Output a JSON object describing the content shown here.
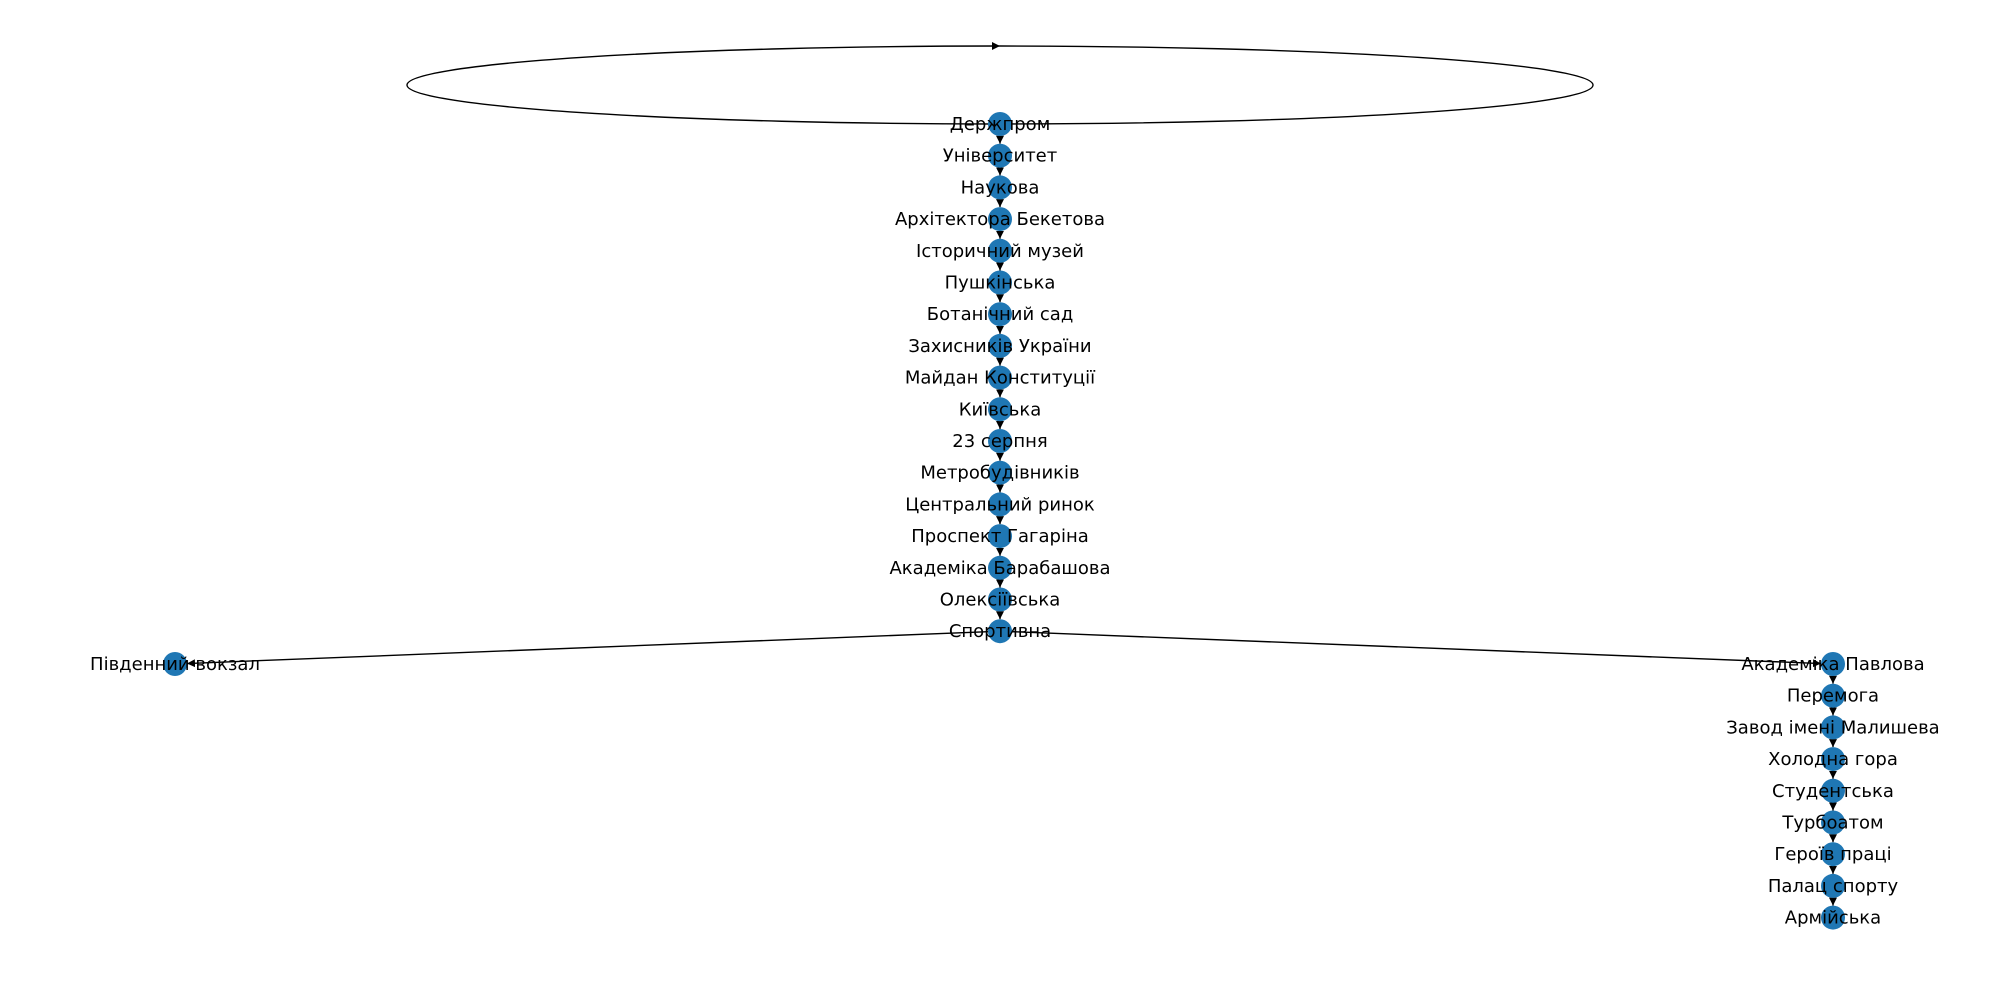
{
  "graph": {
    "node_color": "#1f77b4",
    "edge_color": "#000000",
    "nodes": [
      {
        "id": "derzhprom",
        "label": "Держпром"
      },
      {
        "id": "universytet",
        "label": "Університет"
      },
      {
        "id": "naukova",
        "label": "Наукова"
      },
      {
        "id": "arkhitektora-beketova",
        "label": "Архітектора Бекетова"
      },
      {
        "id": "istorychnyi-muzei",
        "label": "Історичний музей"
      },
      {
        "id": "pushkinska",
        "label": "Пушкінська"
      },
      {
        "id": "botanichnyi-sad",
        "label": "Ботанічний сад"
      },
      {
        "id": "zakhysnykiv-ukrainy",
        "label": "Захисників України"
      },
      {
        "id": "maidan-konstytutsii",
        "label": "Майдан Конституції"
      },
      {
        "id": "kyivska",
        "label": "Київська"
      },
      {
        "id": "23-serpnia",
        "label": "23 серпня"
      },
      {
        "id": "metrobudivnykiv",
        "label": "Метробудівників"
      },
      {
        "id": "tsentralnyi-rynok",
        "label": "Центральний ринок"
      },
      {
        "id": "prospekt-haharina",
        "label": "Проспект Гагаріна"
      },
      {
        "id": "akademika-barabashova",
        "label": "Академіка Барабашова"
      },
      {
        "id": "oleksiivska",
        "label": "Олексіївська"
      },
      {
        "id": "sportyvna",
        "label": "Спортивна"
      },
      {
        "id": "pivdennyi-vokzal",
        "label": "Південний вокзал"
      },
      {
        "id": "akademika-pavlova",
        "label": "Академіка Павлова"
      },
      {
        "id": "peremoha",
        "label": "Перемога"
      },
      {
        "id": "zavod-imeni-malysheva",
        "label": "Завод імені Малишева"
      },
      {
        "id": "kholodna-hora",
        "label": "Холодна гора"
      },
      {
        "id": "studentska",
        "label": "Студентська"
      },
      {
        "id": "turboatom",
        "label": "Турбоатом"
      },
      {
        "id": "heroiv-pratsi",
        "label": "Героїв праці"
      },
      {
        "id": "palats-sportu",
        "label": "Палац спорту"
      },
      {
        "id": "armiiska",
        "label": "Армійська"
      }
    ],
    "edges": [
      {
        "from": "derzhprom",
        "to": "derzhprom"
      },
      {
        "from": "derzhprom",
        "to": "universytet"
      },
      {
        "from": "universytet",
        "to": "naukova"
      },
      {
        "from": "naukova",
        "to": "arkhitektora-beketova"
      },
      {
        "from": "arkhitektora-beketova",
        "to": "istorychnyi-muzei"
      },
      {
        "from": "istorychnyi-muzei",
        "to": "pushkinska"
      },
      {
        "from": "pushkinska",
        "to": "botanichnyi-sad"
      },
      {
        "from": "botanichnyi-sad",
        "to": "zakhysnykiv-ukrainy"
      },
      {
        "from": "zakhysnykiv-ukrainy",
        "to": "maidan-konstytutsii"
      },
      {
        "from": "maidan-konstytutsii",
        "to": "kyivska"
      },
      {
        "from": "kyivska",
        "to": "23-serpnia"
      },
      {
        "from": "23-serpnia",
        "to": "metrobudivnykiv"
      },
      {
        "from": "metrobudivnykiv",
        "to": "tsentralnyi-rynok"
      },
      {
        "from": "tsentralnyi-rynok",
        "to": "prospekt-haharina"
      },
      {
        "from": "prospekt-haharina",
        "to": "akademika-barabashova"
      },
      {
        "from": "akademika-barabashova",
        "to": "oleksiivska"
      },
      {
        "from": "oleksiivska",
        "to": "sportyvna"
      },
      {
        "from": "sportyvna",
        "to": "pivdennyi-vokzal"
      },
      {
        "from": "sportyvna",
        "to": "akademika-pavlova"
      },
      {
        "from": "akademika-pavlova",
        "to": "peremoha"
      },
      {
        "from": "peremoha",
        "to": "zavod-imeni-malysheva"
      },
      {
        "from": "zavod-imeni-malysheva",
        "to": "kholodna-hora"
      },
      {
        "from": "kholodna-hora",
        "to": "studentska"
      },
      {
        "from": "studentska",
        "to": "turboatom"
      },
      {
        "from": "turboatom",
        "to": "heroiv-pratsi"
      },
      {
        "from": "heroiv-pratsi",
        "to": "palats-sportu"
      },
      {
        "from": "palats-sportu",
        "to": "armiiska"
      }
    ]
  }
}
